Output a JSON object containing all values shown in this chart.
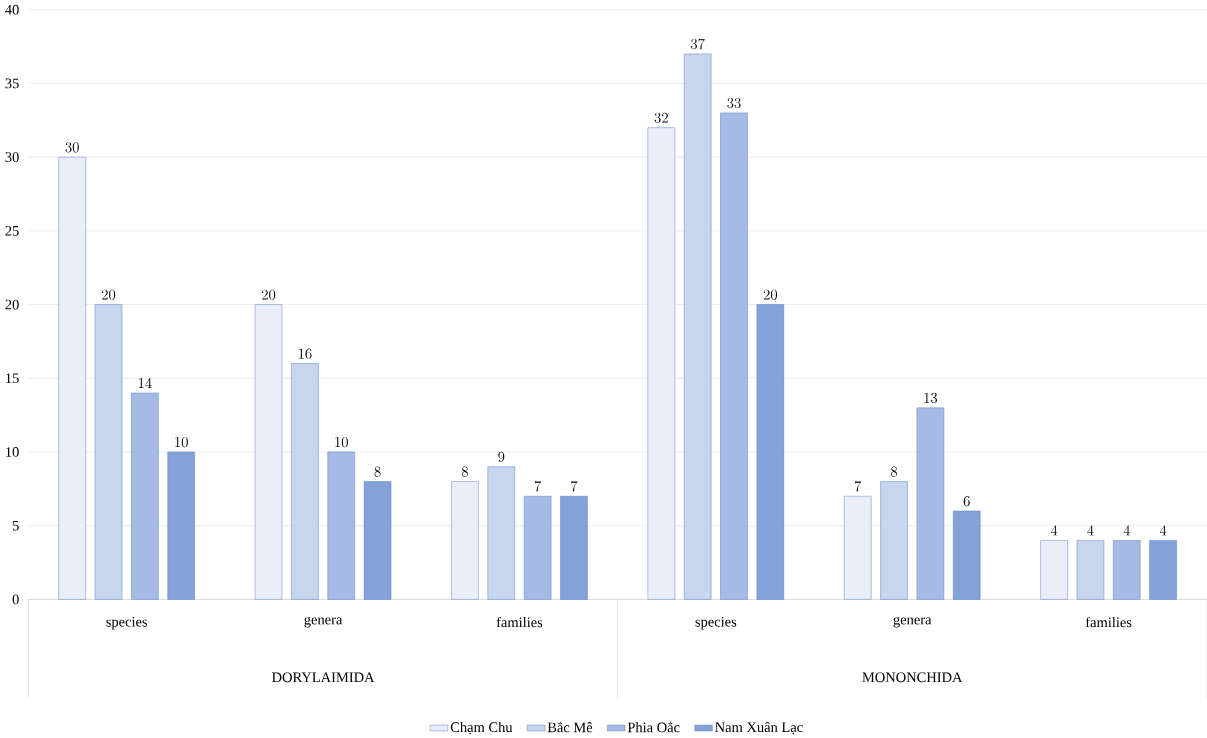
{
  "chart_data": {
    "type": "bar",
    "categories": [
      "species",
      "genera",
      "families",
      "species",
      "genera",
      "families"
    ],
    "series": [
      {
        "name": "Chạm Chu",
        "color": "#4472c4",
        "values": [
          30,
          20,
          8,
          32,
          7,
          4
        ]
      },
      {
        "name": "Bắc Mê",
        "color": "#4472c4",
        "values": [
          20,
          16,
          9,
          37,
          8,
          4
        ]
      },
      {
        "name": "Phia Oắc",
        "color": "#4472c4",
        "values": [
          14,
          10,
          7,
          33,
          13,
          4
        ]
      },
      {
        "name": "Nam Xuân Lạc",
        "color": "#4472c4",
        "values": [
          10,
          8,
          7,
          20,
          6,
          4
        ]
      }
    ],
    "annotations": [
      "DORYLAIMIDA",
      "MONONCHIDA"
    ],
    "ylim": [
      0,
      40
    ],
    "yticks": [
      0,
      5,
      10,
      15,
      20,
      25,
      30,
      35,
      40
    ],
    "grid": "y",
    "legend": "bottom",
    "data_labels": true
  }
}
